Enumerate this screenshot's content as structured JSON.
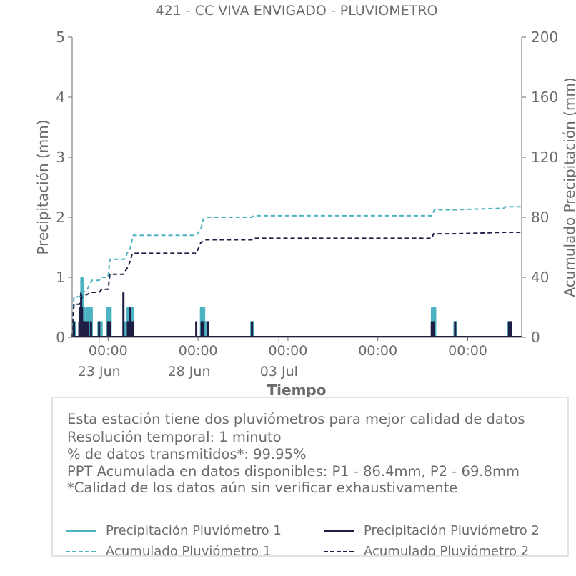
{
  "chart_data": {
    "type": "bar+line",
    "title": "421 - CC VIVA ENVIGADO - PLUVIOMETRO",
    "xlabel": "Tiempo",
    "ylabel_left": "Precipitación (mm)",
    "ylabel_right": "Acumulado Precipitación (mm)",
    "ylim_left": [
      0,
      5
    ],
    "ylim_right": [
      0,
      200
    ],
    "yticks_left": [
      "0",
      "1",
      "2",
      "3",
      "4",
      "5"
    ],
    "yticks_right": [
      "0",
      "40",
      "80",
      "120",
      "160",
      "200"
    ],
    "xlim_days": [
      0,
      25
    ],
    "x_major_ticks": [
      {
        "day": 1.5,
        "label": "23 Jun"
      },
      {
        "day": 6.5,
        "label": "28 Jun"
      },
      {
        "day": 11.5,
        "label": "03 Jul"
      }
    ],
    "x_minor_ticks": [
      {
        "day": 2,
        "label": "00:00"
      },
      {
        "day": 7,
        "label": "00:00"
      },
      {
        "day": 12,
        "label": "00:00"
      },
      {
        "day": 17,
        "label": "00:00"
      },
      {
        "day": 22,
        "label": "00:00"
      }
    ],
    "colors": {
      "p1": "#4db3c2",
      "p2": "#1e1e44",
      "axis": "#6b6b6b"
    },
    "series": [
      {
        "name": "Precipitación Pluviómetro 1",
        "kind": "bar",
        "color": "#4db3c2",
        "x": [
          0.1,
          0.45,
          0.55,
          0.65,
          0.75,
          0.85,
          0.95,
          1.05,
          1.5,
          1.6,
          2.0,
          2.1,
          3.0,
          3.1,
          3.2,
          3.3,
          3.35,
          7.2,
          7.25,
          7.3,
          7.4,
          7.5,
          10.0,
          20.05,
          20.15,
          21.3,
          24.3
        ],
        "values": [
          0.27,
          0.27,
          1.0,
          0.5,
          0.27,
          0.5,
          0.5,
          0.5,
          0.27,
          0.27,
          0.5,
          0.5,
          0.27,
          0.5,
          0.5,
          0.27,
          0.5,
          0.5,
          0.5,
          0.5,
          0.27,
          0.27,
          0.27,
          0.5,
          0.5,
          0.27,
          0.27
        ]
      },
      {
        "name": "Precipitación Pluviómetro 2",
        "kind": "bar",
        "color": "#1e1e44",
        "x": [
          0.1,
          0.4,
          0.45,
          0.5,
          0.55,
          0.6,
          0.7,
          0.8,
          0.9,
          1.05,
          1.5,
          2.0,
          2.1,
          2.85,
          3.1,
          3.2,
          3.3,
          3.4,
          6.9,
          7.2,
          7.3,
          7.55,
          10.0,
          20.0,
          20.1,
          21.3,
          24.3,
          24.4
        ],
        "values": [
          0.27,
          0.27,
          0.5,
          0.75,
          0.5,
          0.27,
          0.27,
          0.27,
          0.27,
          0.27,
          0.27,
          0.27,
          0.27,
          0.75,
          0.27,
          0.5,
          0.27,
          0.27,
          0.27,
          0.27,
          0.27,
          0.27,
          0.27,
          0.27,
          0.27,
          0.27,
          0.27,
          0.27
        ]
      },
      {
        "name": "Acumulado Pluviómetro 1",
        "kind": "line-dashed",
        "color": "#4db3c2",
        "x": [
          0,
          0.1,
          0.4,
          0.5,
          0.6,
          0.8,
          1.0,
          1.1,
          1.5,
          1.65,
          2.0,
          2.1,
          2.9,
          3.1,
          3.2,
          3.3,
          3.4,
          6.9,
          7.15,
          7.3,
          7.55,
          10.0,
          10.1,
          20.0,
          20.15,
          21.3,
          24.0,
          24.1,
          25.0
        ],
        "values": [
          0,
          27,
          27,
          29,
          30,
          31,
          36,
          38,
          38,
          40,
          40,
          52,
          52,
          57,
          58,
          63,
          68,
          68,
          72,
          79,
          80,
          80,
          81,
          81,
          85,
          85,
          86,
          87,
          87
        ]
      },
      {
        "name": "Acumulado Pluviómetro 2",
        "kind": "line-dashed",
        "color": "#1e1e44",
        "x": [
          0,
          0.1,
          0.4,
          0.5,
          0.6,
          0.9,
          1.0,
          1.5,
          1.65,
          2.0,
          2.1,
          2.85,
          3.1,
          3.2,
          3.35,
          6.9,
          7.15,
          7.4,
          10.0,
          10.1,
          20.0,
          20.1,
          21.3,
          24.0,
          25.0
        ],
        "values": [
          0,
          22,
          22,
          26,
          27,
          29,
          30,
          30,
          32,
          32,
          42,
          42,
          47,
          50,
          56,
          56,
          63,
          65,
          65,
          66,
          66,
          69,
          69,
          70,
          70
        ]
      }
    ],
    "annotation": {
      "lines": [
        "Esta estación tiene dos pluviómetros para mejor calidad de datos",
        "Resolución temporal: 1 minuto",
        "% de datos transmitidos*: 99.95%",
        "PPT Acumulada en datos disponibles: P1 - 86.4mm, P2 - 69.8mm",
        "*Calidad de los datos aún sin verificar exhaustivamente"
      ]
    },
    "legend": [
      {
        "label": "Precipitación Pluviómetro 1",
        "color": "#4db3c2",
        "style": "solid"
      },
      {
        "label": "Precipitación Pluviómetro 2",
        "color": "#1e1e44",
        "style": "solid"
      },
      {
        "label": "Acumulado Pluviómetro 1",
        "color": "#4db3c2",
        "style": "dashed"
      },
      {
        "label": "Acumulado Pluviómetro 2",
        "color": "#1e1e44",
        "style": "dashed"
      }
    ]
  }
}
